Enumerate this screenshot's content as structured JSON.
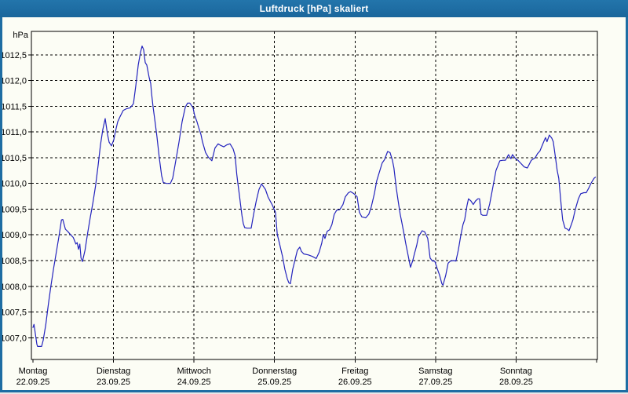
{
  "window": {
    "title": "Luftdruck [hPa] skaliert"
  },
  "colors": {
    "titlebar": "#1e6da3",
    "window_border": "#1e6da3",
    "background": "#fcfdf5",
    "axis": "#000000",
    "grid": "#000000",
    "line": "#2323bd"
  },
  "chart_data": {
    "type": "line",
    "title": "Luftdruck [hPa] skaliert",
    "ylabel": "hPa",
    "unit_label": "hPa",
    "grid": "dashed",
    "legend": "none",
    "ylim": [
      1006.58,
      1012.96
    ],
    "xlim_days": [
      0,
      7
    ],
    "yticks": [
      {
        "value": 1007.0,
        "label": "1007,0"
      },
      {
        "value": 1007.5,
        "label": "1007,5"
      },
      {
        "value": 1008.0,
        "label": "1008,0"
      },
      {
        "value": 1008.5,
        "label": "1008,5"
      },
      {
        "value": 1009.0,
        "label": "1009,0"
      },
      {
        "value": 1009.5,
        "label": "1009,5"
      },
      {
        "value": 1010.0,
        "label": "1010,0"
      },
      {
        "value": 1010.5,
        "label": "1010,5"
      },
      {
        "value": 1011.0,
        "label": "1011,0"
      },
      {
        "value": 1011.5,
        "label": "1011,5"
      },
      {
        "value": 1012.0,
        "label": "1012,0"
      },
      {
        "value": 1012.5,
        "label": "1012,5"
      }
    ],
    "days": [
      {
        "name": "Montag",
        "date": "22.09.25"
      },
      {
        "name": "Dienstag",
        "date": "23.09.25"
      },
      {
        "name": "Mittwoch",
        "date": "24.09.25"
      },
      {
        "name": "Donnerstag",
        "date": "25.09.25"
      },
      {
        "name": "Freitag",
        "date": "26.09.25"
      },
      {
        "name": "Samstag",
        "date": "27.09.25"
      },
      {
        "name": "Sonntag",
        "date": "28.09.25"
      }
    ],
    "series": [
      {
        "name": "Luftdruck",
        "unit": "hPa",
        "color": "#2323bd",
        "points": [
          [
            0,
            1007.2
          ],
          [
            0.013,
            1007.26
          ],
          [
            0.029,
            1007.08
          ],
          [
            0.049,
            1006.87
          ],
          [
            0.058,
            1006.83
          ],
          [
            0.107,
            1006.83
          ],
          [
            0.127,
            1006.95
          ],
          [
            0.159,
            1007.25
          ],
          [
            0.192,
            1007.66
          ],
          [
            0.224,
            1008.02
          ],
          [
            0.256,
            1008.35
          ],
          [
            0.289,
            1008.65
          ],
          [
            0.322,
            1008.96
          ],
          [
            0.354,
            1009.29
          ],
          [
            0.37,
            1009.3
          ],
          [
            0.403,
            1009.11
          ],
          [
            0.436,
            1009.06
          ],
          [
            0.468,
            1009.0
          ],
          [
            0.5,
            1008.95
          ],
          [
            0.533,
            1008.82
          ],
          [
            0.549,
            1008.85
          ],
          [
            0.565,
            1008.72
          ],
          [
            0.582,
            1008.82
          ],
          [
            0.597,
            1008.55
          ],
          [
            0.614,
            1008.48
          ],
          [
            0.646,
            1008.7
          ],
          [
            0.679,
            1009.03
          ],
          [
            0.712,
            1009.34
          ],
          [
            0.744,
            1009.62
          ],
          [
            0.777,
            1009.95
          ],
          [
            0.809,
            1010.35
          ],
          [
            0.838,
            1010.75
          ],
          [
            0.868,
            1011.05
          ],
          [
            0.897,
            1011.26
          ],
          [
            0.926,
            1010.95
          ],
          [
            0.946,
            1010.8
          ],
          [
            0.975,
            1010.73
          ],
          [
            1.004,
            1010.85
          ],
          [
            1.023,
            1011.0
          ],
          [
            1.053,
            1011.2
          ],
          [
            1.082,
            1011.3
          ],
          [
            1.121,
            1011.42
          ],
          [
            1.16,
            1011.45
          ],
          [
            1.209,
            1011.47
          ],
          [
            1.248,
            1011.55
          ],
          [
            1.277,
            1011.9
          ],
          [
            1.307,
            1012.3
          ],
          [
            1.336,
            1012.55
          ],
          [
            1.355,
            1012.67
          ],
          [
            1.375,
            1012.6
          ],
          [
            1.394,
            1012.35
          ],
          [
            1.414,
            1012.3
          ],
          [
            1.443,
            1012.06
          ],
          [
            1.462,
            1011.94
          ],
          [
            1.472,
            1011.76
          ],
          [
            1.491,
            1011.5
          ],
          [
            1.516,
            1011.2
          ],
          [
            1.54,
            1010.9
          ],
          [
            1.569,
            1010.5
          ],
          [
            1.598,
            1010.15
          ],
          [
            1.618,
            1010.02
          ],
          [
            1.657,
            1010.0
          ],
          [
            1.706,
            1010.0
          ],
          [
            1.735,
            1010.1
          ],
          [
            1.764,
            1010.35
          ],
          [
            1.813,
            1010.8
          ],
          [
            1.852,
            1011.2
          ],
          [
            1.891,
            1011.48
          ],
          [
            1.92,
            1011.56
          ],
          [
            1.949,
            1011.56
          ],
          [
            1.988,
            1011.47
          ],
          [
            2.008,
            1011.32
          ],
          [
            2.037,
            1011.2
          ],
          [
            2.057,
            1011.09
          ],
          [
            2.086,
            1010.95
          ],
          [
            2.105,
            1010.81
          ],
          [
            2.144,
            1010.6
          ],
          [
            2.178,
            1010.51
          ],
          [
            2.222,
            1010.44
          ],
          [
            2.261,
            1010.69
          ],
          [
            2.3,
            1010.77
          ],
          [
            2.33,
            1010.74
          ],
          [
            2.369,
            1010.71
          ],
          [
            2.408,
            1010.75
          ],
          [
            2.447,
            1010.77
          ],
          [
            2.486,
            1010.67
          ],
          [
            2.51,
            1010.54
          ],
          [
            2.531,
            1010.18
          ],
          [
            2.547,
            1009.98
          ],
          [
            2.563,
            1009.78
          ],
          [
            2.58,
            1009.57
          ],
          [
            2.596,
            1009.37
          ],
          [
            2.612,
            1009.22
          ],
          [
            2.629,
            1009.14
          ],
          [
            2.66,
            1009.13
          ],
          [
            2.71,
            1009.13
          ],
          [
            2.742,
            1009.42
          ],
          [
            2.775,
            1009.67
          ],
          [
            2.807,
            1009.88
          ],
          [
            2.839,
            1009.99
          ],
          [
            2.888,
            1009.88
          ],
          [
            2.921,
            1009.73
          ],
          [
            2.97,
            1009.59
          ],
          [
            3.012,
            1009.44
          ],
          [
            3.034,
            1009.01
          ],
          [
            3.06,
            1008.84
          ],
          [
            3.099,
            1008.58
          ],
          [
            3.129,
            1008.33
          ],
          [
            3.158,
            1008.15
          ],
          [
            3.177,
            1008.07
          ],
          [
            3.197,
            1008.05
          ],
          [
            3.226,
            1008.33
          ],
          [
            3.265,
            1008.58
          ],
          [
            3.284,
            1008.7
          ],
          [
            3.314,
            1008.76
          ],
          [
            3.333,
            1008.68
          ],
          [
            3.363,
            1008.63
          ],
          [
            3.421,
            1008.61
          ],
          [
            3.47,
            1008.58
          ],
          [
            3.518,
            1008.54
          ],
          [
            3.554,
            1008.66
          ],
          [
            3.587,
            1008.84
          ],
          [
            3.606,
            1009.01
          ],
          [
            3.626,
            1008.93
          ],
          [
            3.655,
            1009.07
          ],
          [
            3.684,
            1009.1
          ],
          [
            3.713,
            1009.2
          ],
          [
            3.742,
            1009.4
          ],
          [
            3.772,
            1009.48
          ],
          [
            3.811,
            1009.49
          ],
          [
            3.85,
            1009.59
          ],
          [
            3.879,
            1009.74
          ],
          [
            3.918,
            1009.82
          ],
          [
            3.947,
            1009.84
          ],
          [
            3.986,
            1009.8
          ],
          [
            4.025,
            1009.74
          ],
          [
            4.054,
            1009.44
          ],
          [
            4.084,
            1009.35
          ],
          [
            4.132,
            1009.33
          ],
          [
            4.171,
            1009.4
          ],
          [
            4.201,
            1009.54
          ],
          [
            4.24,
            1009.8
          ],
          [
            4.269,
            1010.05
          ],
          [
            4.298,
            1010.2
          ],
          [
            4.337,
            1010.4
          ],
          [
            4.366,
            1010.46
          ],
          [
            4.405,
            1010.62
          ],
          [
            4.435,
            1010.6
          ],
          [
            4.464,
            1010.45
          ],
          [
            4.483,
            1010.3
          ],
          [
            4.513,
            1009.9
          ],
          [
            4.532,
            1009.69
          ],
          [
            4.561,
            1009.4
          ],
          [
            4.581,
            1009.24
          ],
          [
            4.61,
            1009.0
          ],
          [
            4.63,
            1008.83
          ],
          [
            4.659,
            1008.6
          ],
          [
            4.688,
            1008.37
          ],
          [
            4.717,
            1008.5
          ],
          [
            4.737,
            1008.63
          ],
          [
            4.766,
            1008.8
          ],
          [
            4.786,
            1008.96
          ],
          [
            4.834,
            1009.08
          ],
          [
            4.864,
            1009.06
          ],
          [
            4.903,
            1008.93
          ],
          [
            4.932,
            1008.55
          ],
          [
            4.961,
            1008.49
          ],
          [
            4.99,
            1008.49
          ],
          [
            5.019,
            1008.35
          ],
          [
            5.049,
            1008.22
          ],
          [
            5.078,
            1008.05
          ],
          [
            5.092,
            1008.02
          ],
          [
            5.127,
            1008.22
          ],
          [
            5.156,
            1008.45
          ],
          [
            5.185,
            1008.49
          ],
          [
            5.224,
            1008.5
          ],
          [
            5.253,
            1008.49
          ],
          [
            5.282,
            1008.7
          ],
          [
            5.312,
            1008.98
          ],
          [
            5.341,
            1009.2
          ],
          [
            5.361,
            1009.29
          ],
          [
            5.39,
            1009.57
          ],
          [
            5.409,
            1009.7
          ],
          [
            5.439,
            1009.66
          ],
          [
            5.468,
            1009.59
          ],
          [
            5.497,
            1009.66
          ],
          [
            5.526,
            1009.7
          ],
          [
            5.546,
            1009.7
          ],
          [
            5.565,
            1009.4
          ],
          [
            5.585,
            1009.38
          ],
          [
            5.634,
            1009.38
          ],
          [
            5.672,
            1009.6
          ],
          [
            5.702,
            1009.85
          ],
          [
            5.75,
            1010.25
          ],
          [
            5.799,
            1010.44
          ],
          [
            5.838,
            1010.45
          ],
          [
            5.867,
            1010.45
          ],
          [
            5.906,
            1010.56
          ],
          [
            5.936,
            1010.48
          ],
          [
            5.955,
            1010.56
          ],
          [
            5.994,
            1010.48
          ],
          [
            6.023,
            1010.45
          ],
          [
            6.053,
            1010.4
          ],
          [
            6.101,
            1010.32
          ],
          [
            6.14,
            1010.3
          ],
          [
            6.189,
            1010.45
          ],
          [
            6.238,
            1010.5
          ],
          [
            6.267,
            1010.58
          ],
          [
            6.296,
            1010.63
          ],
          [
            6.335,
            1010.78
          ],
          [
            6.365,
            1010.89
          ],
          [
            6.384,
            1010.81
          ],
          [
            6.413,
            1010.94
          ],
          [
            6.443,
            1010.88
          ],
          [
            6.462,
            1010.81
          ],
          [
            6.491,
            1010.48
          ],
          [
            6.511,
            1010.25
          ],
          [
            6.53,
            1010.1
          ],
          [
            6.559,
            1009.59
          ],
          [
            6.579,
            1009.29
          ],
          [
            6.608,
            1009.13
          ],
          [
            6.637,
            1009.11
          ],
          [
            6.657,
            1009.08
          ],
          [
            6.686,
            1009.2
          ],
          [
            6.706,
            1009.29
          ],
          [
            6.735,
            1009.49
          ],
          [
            6.774,
            1009.7
          ],
          [
            6.803,
            1009.8
          ],
          [
            6.842,
            1009.82
          ],
          [
            6.871,
            1009.82
          ],
          [
            6.9,
            1009.9
          ],
          [
            6.93,
            1010.0
          ],
          [
            6.969,
            1010.1
          ],
          [
            6.985,
            1010.12
          ]
        ]
      }
    ]
  }
}
